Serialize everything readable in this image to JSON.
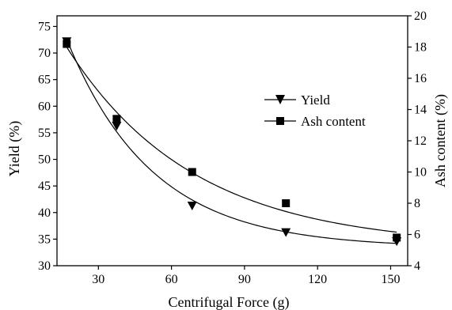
{
  "chart_data": {
    "type": "scatter",
    "title": "",
    "xlabel": "Centrifugal Force (g)",
    "ylabel": "Yield (%)",
    "y2label": "Ash content (%)",
    "xlim": [
      13,
      157
    ],
    "ylim": [
      30,
      77
    ],
    "y2lim": [
      4,
      20
    ],
    "x_ticks": [
      "30",
      "60",
      "90",
      "120",
      "150"
    ],
    "x_tick_values": [
      30,
      60,
      90,
      120,
      150
    ],
    "y_ticks": [
      "30",
      "35",
      "40",
      "45",
      "50",
      "55",
      "60",
      "65",
      "70",
      "75"
    ],
    "y_tick_values": [
      30,
      35,
      40,
      45,
      50,
      55,
      60,
      65,
      70,
      75
    ],
    "y2_ticks": [
      "4",
      "6",
      "8",
      "10",
      "12",
      "14",
      "16",
      "18",
      "20"
    ],
    "y2_tick_values": [
      4,
      6,
      8,
      10,
      12,
      14,
      16,
      18,
      20
    ],
    "grid": false,
    "legend_position": "upper-right",
    "x": [
      17,
      37.5,
      68.5,
      107,
      152.5
    ],
    "series": [
      {
        "name": "Yield",
        "axis": "left",
        "marker": "down-triangle",
        "values": [
          72.2,
          56.3,
          41.3,
          36.3,
          34.6
        ]
      },
      {
        "name": "Ash content",
        "axis": "right",
        "marker": "square",
        "values": [
          18.2,
          13.4,
          10.0,
          8.0,
          5.8
        ]
      }
    ]
  }
}
